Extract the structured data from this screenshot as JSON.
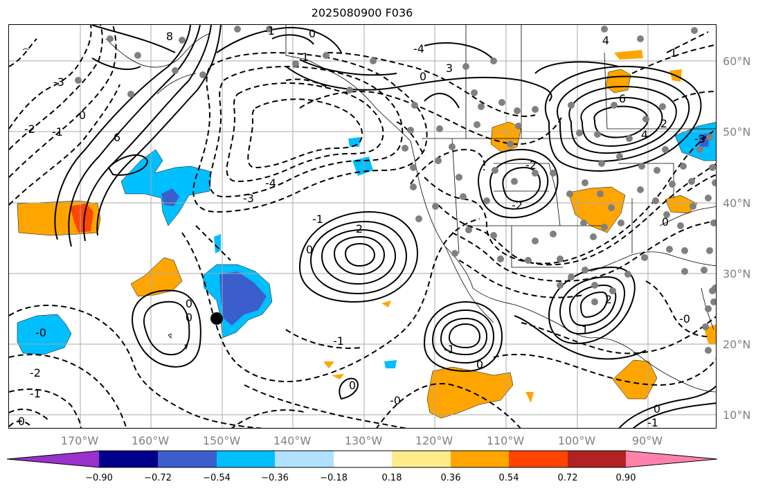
{
  "title": "2025080900 F036",
  "lat_labels": [
    "60°N",
    "50°N",
    "40°N",
    "30°N",
    "20°N",
    "10°N"
  ],
  "lon_labels": [
    "170°W",
    "160°W",
    "150°W",
    "140°W",
    "130°W",
    "120°W",
    "110°W",
    "100°W",
    "90°W"
  ],
  "colorbar": {
    "colors": [
      "#9932cc",
      "#00008b",
      "#3a5fcd",
      "#00bfff",
      "#b0e2ff",
      "#ffffff",
      "#ffec8b",
      "#ffa500",
      "#ff4500",
      "#b22222",
      "#ff82ab"
    ],
    "tick_labels": [
      "−0.90",
      "−0.72",
      "−0.54",
      "−0.36",
      "−0.18",
      "0.18",
      "0.36",
      "0.54",
      "0.72",
      "0.90"
    ]
  },
  "contour_labels": {
    "l1": "-3",
    "l2": "-2",
    "l3": "-1",
    "l4": "0",
    "l5": "6",
    "l6": "8",
    "l7": "-1",
    "l8": "0",
    "l9": "1",
    "l10": "-4",
    "l11": "-3",
    "l12": "-1",
    "l13": "2",
    "l14": "0",
    "l15": "-4",
    "l16": "3",
    "l17": "0",
    "l18": "-2",
    "l19": "-2",
    "l20": "6",
    "l21": "4",
    "l22": "2",
    "l23": "0",
    "l24": "2",
    "l25": "-0",
    "l26": "-2",
    "l27": "-1",
    "l28": "0",
    "l29": "0",
    "l30": "-1",
    "l31": "-0",
    "l32": "0",
    "l33": "-1",
    "l34": "0",
    "l35": "-3",
    "l36": "4",
    "l37": "-1",
    "l38": "1",
    "l39": "-0",
    "l40": "0",
    "l41": "0",
    "l42": "1"
  }
}
